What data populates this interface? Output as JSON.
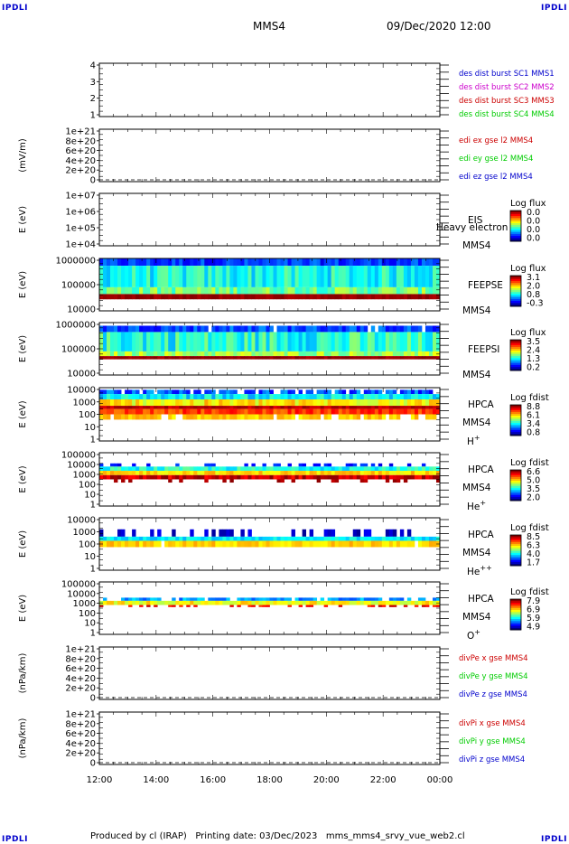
{
  "corner_label": "IPDLI",
  "header": {
    "spacecraft": "MMS4",
    "datetime": "09/Dec/2020 12:00"
  },
  "footer": "Produced by cl (IRAP)   Printing date: 03/Dec/2023   mms_mms4_srvy_vue_web2.cl",
  "x_axis": {
    "ticks": [
      "12:00",
      "14:00",
      "16:00",
      "18:00",
      "20:00",
      "22:00",
      "00:00"
    ]
  },
  "colors": {
    "blue": "#0000cc",
    "magenta": "#cc00cc",
    "red": "#cc0000",
    "green": "#00cc00"
  },
  "chart_data": [
    {
      "type": "line",
      "panel": "des-dist-burst",
      "yticks": [
        "4",
        "3",
        "2",
        "1"
      ],
      "ylabel": "",
      "legend": [
        {
          "text": "des dist burst SC1 MMS1",
          "color": "#0000cc"
        },
        {
          "text": "des dist burst SC2 MMS2",
          "color": "#cc00cc"
        },
        {
          "text": "des dist burst SC3 MMS3",
          "color": "#cc0000"
        },
        {
          "text": "des dist burst SC4 MMS4",
          "color": "#00cc00"
        }
      ],
      "series": []
    },
    {
      "type": "line",
      "panel": "edi-e-field",
      "yticks": [
        "1e+21",
        "8e+20",
        "6e+20",
        "4e+20",
        "2e+20",
        "0"
      ],
      "ylabel": "(mV/m)",
      "zero_line": "dashed",
      "legend": [
        {
          "text": "edi ex gse l2 MMS4",
          "color": "#cc0000"
        },
        {
          "text": "edi ey gse l2 MMS4",
          "color": "#00cc00"
        },
        {
          "text": "edi ez gse l2 MMS4",
          "color": "#0000cc"
        }
      ],
      "series": []
    },
    {
      "type": "heatmap",
      "panel": "eis",
      "yticks": [
        "1e+07",
        "1e+06",
        "1e+05",
        "1e+04"
      ],
      "ylabel": "E (eV)",
      "instrument": [
        "EIS",
        "MMS4"
      ],
      "overlay_text": "Heavy electron to",
      "colorbar": {
        "title": "Log flux",
        "ticks": [
          "0.0",
          "0.0",
          "0.0",
          "0.0"
        ]
      },
      "empty": true
    },
    {
      "type": "heatmap",
      "panel": "feepse",
      "yticks": [
        "1000000",
        "100000",
        "10000"
      ],
      "ylabel": "E (eV)",
      "instrument": [
        "FEEPSE",
        "MMS4"
      ],
      "colorbar": {
        "title": "Log flux",
        "ticks": [
          "3.1",
          "2.0",
          "0.8",
          "-0.3"
        ]
      }
    },
    {
      "type": "heatmap",
      "panel": "feepsi",
      "yticks": [
        "1000000",
        "100000",
        "10000"
      ],
      "ylabel": "E (eV)",
      "instrument": [
        "FEEPSI",
        "MMS4"
      ],
      "colorbar": {
        "title": "Log flux",
        "ticks": [
          "3.5",
          "2.4",
          "1.3",
          "0.2"
        ]
      }
    },
    {
      "type": "heatmap",
      "panel": "hpca-h",
      "yticks": [
        "10000",
        "1000",
        "100",
        "10",
        "1"
      ],
      "ylabel": "E (eV)",
      "instrument": [
        "HPCA",
        "MMS4"
      ],
      "species": {
        "base": "H",
        "sup": "+"
      },
      "colorbar": {
        "title": "Log fdist",
        "ticks": [
          "8.8",
          "6.1",
          "3.4",
          "0.8"
        ]
      }
    },
    {
      "type": "heatmap",
      "panel": "hpca-he",
      "yticks": [
        "100000",
        "10000",
        "1000",
        "100",
        "10",
        "1"
      ],
      "ylabel": "E (eV)",
      "instrument": [
        "HPCA",
        "MMS4"
      ],
      "species": {
        "base": "He",
        "sup": "+"
      },
      "colorbar": {
        "title": "Log fdist",
        "ticks": [
          "6.6",
          "5.0",
          "3.5",
          "2.0"
        ]
      }
    },
    {
      "type": "heatmap",
      "panel": "hpca-hepp",
      "yticks": [
        "10000",
        "1000",
        "100",
        "10",
        "1"
      ],
      "ylabel": "E (eV)",
      "instrument": [
        "HPCA",
        "MMS4"
      ],
      "species": {
        "base": "He",
        "sup": "++"
      },
      "colorbar": {
        "title": "Log fdist",
        "ticks": [
          "8.5",
          "6.3",
          "4.0",
          "1.7"
        ]
      }
    },
    {
      "type": "heatmap",
      "panel": "hpca-o",
      "yticks": [
        "100000",
        "10000",
        "1000",
        "100",
        "10",
        "1"
      ],
      "ylabel": "E (eV)",
      "instrument": [
        "HPCA",
        "MMS4"
      ],
      "species": {
        "base": "O",
        "sup": "+"
      },
      "colorbar": {
        "title": "Log fdist",
        "ticks": [
          "7.9",
          "6.9",
          "5.9",
          "4.9"
        ]
      }
    },
    {
      "type": "line",
      "panel": "divpe",
      "yticks": [
        "1e+21",
        "8e+20",
        "6e+20",
        "4e+20",
        "2e+20",
        "0"
      ],
      "ylabel": "(nPa/km)",
      "zero_line": "dashed",
      "legend": [
        {
          "text": "divPe x gse MMS4",
          "color": "#cc0000"
        },
        {
          "text": "divPe y gse MMS4",
          "color": "#00cc00"
        },
        {
          "text": "divPe z gse MMS4",
          "color": "#0000cc"
        }
      ],
      "series": []
    },
    {
      "type": "line",
      "panel": "divpi",
      "yticks": [
        "1e+21",
        "8e+20",
        "6e+20",
        "4e+20",
        "2e+20",
        "0"
      ],
      "ylabel": "(nPa/km)",
      "zero_line": "dashed",
      "legend": [
        {
          "text": "divPi x gse MMS4",
          "color": "#cc0000"
        },
        {
          "text": "divPi y gse MMS4",
          "color": "#00cc00"
        },
        {
          "text": "divPi z gse MMS4",
          "color": "#0000cc"
        }
      ],
      "series": []
    }
  ]
}
